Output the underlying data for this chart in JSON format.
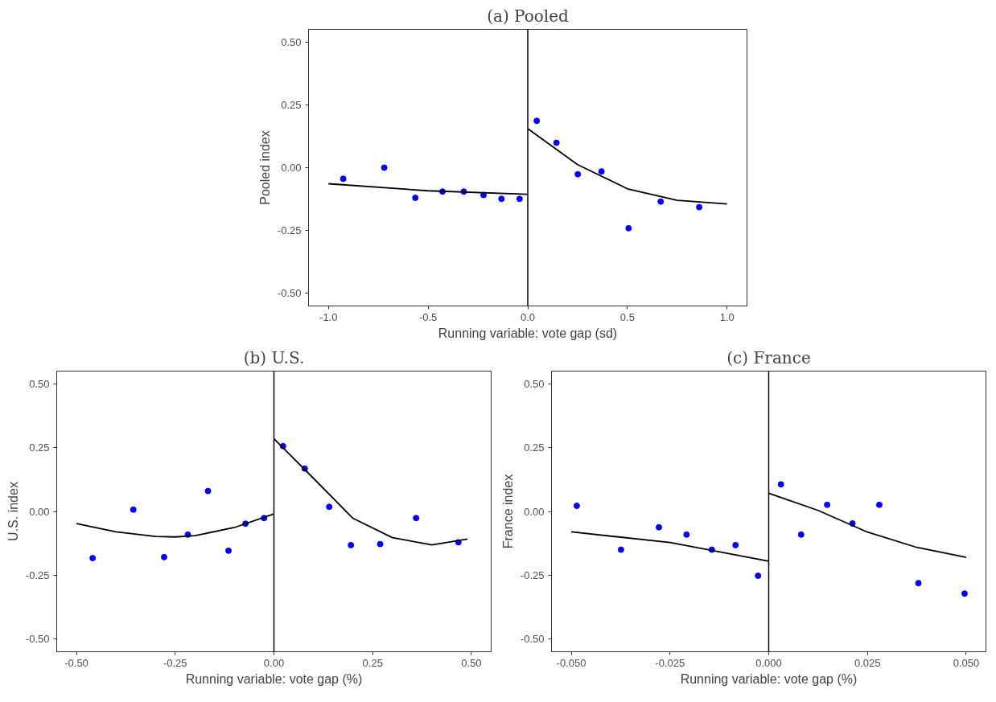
{
  "chart_data": [
    {
      "type": "scatter",
      "title": "(a) Pooled",
      "xlabel": "Running variable: vote gap (sd)",
      "ylabel": "Pooled index",
      "xlim": [
        -1.1,
        1.1
      ],
      "ylim": [
        -0.55,
        0.55
      ],
      "xticks": [
        {
          "value": -1,
          "label": "-1.0"
        },
        {
          "value": -0.5,
          "label": "-0.5"
        },
        {
          "value": 0,
          "label": "0.0"
        },
        {
          "value": 0.5,
          "label": "0.5"
        },
        {
          "value": 1,
          "label": "1.0"
        }
      ],
      "yticks": [
        {
          "value": -0.5,
          "label": "-0.50"
        },
        {
          "value": -0.25,
          "label": "-0.25"
        },
        {
          "value": 0,
          "label": "0.00"
        },
        {
          "value": 0.25,
          "label": "0.25"
        },
        {
          "value": 0.5,
          "label": "0.50"
        }
      ],
      "grid": false,
      "ref_lines": [
        {
          "axis": "x",
          "value": 0,
          "color": "#000000"
        }
      ],
      "series": [
        {
          "marker": "circle",
          "color": "#0000ff",
          "x": [
            -0.926,
            -0.72,
            -0.564,
            -0.428,
            -0.321,
            -0.222,
            -0.132,
            -0.041,
            0.045,
            0.144,
            0.251,
            0.37,
            0.506,
            0.667,
            0.86
          ],
          "values": [
            -0.044,
            0.0,
            -0.12,
            -0.095,
            -0.095,
            -0.109,
            -0.124,
            -0.124,
            0.186,
            0.099,
            -0.026,
            -0.015,
            -0.241,
            -0.135,
            -0.157
          ]
        },
        {
          "type": "line",
          "color": "#000000",
          "x": [
            -1.0,
            -0.5,
            0.0
          ],
          "values": [
            -0.064,
            -0.092,
            -0.106
          ]
        },
        {
          "type": "line",
          "color": "#000000",
          "x": [
            0.0,
            0.25,
            0.5,
            0.75,
            1.0
          ],
          "values": [
            0.155,
            0.012,
            -0.084,
            -0.13,
            -0.144
          ]
        }
      ]
    },
    {
      "type": "scatter",
      "title": "(b) U.S.",
      "xlabel": "Running variable: vote gap (%)",
      "ylabel": "U.S. index",
      "xlim": [
        -0.55,
        0.55
      ],
      "ylim": [
        -0.55,
        0.55
      ],
      "xticks": [
        {
          "value": -0.5,
          "label": "-0.50"
        },
        {
          "value": -0.25,
          "label": "-0.25"
        },
        {
          "value": 0,
          "label": "0.00"
        },
        {
          "value": 0.25,
          "label": "0.25"
        },
        {
          "value": 0.5,
          "label": "0.50"
        }
      ],
      "yticks": [
        {
          "value": -0.5,
          "label": "-0.50"
        },
        {
          "value": -0.25,
          "label": "-0.25"
        },
        {
          "value": 0,
          "label": "0.00"
        },
        {
          "value": 0.25,
          "label": "0.25"
        },
        {
          "value": 0.5,
          "label": "0.50"
        }
      ],
      "grid": false,
      "ref_lines": [
        {
          "axis": "x",
          "value": 0,
          "color": "#000000"
        }
      ],
      "series": [
        {
          "marker": "circle",
          "color": "#0000ff",
          "x": [
            -0.459,
            -0.356,
            -0.278,
            -0.218,
            -0.167,
            -0.115,
            -0.072,
            -0.025,
            0.023,
            0.078,
            0.14,
            0.195,
            0.269,
            0.36,
            0.467
          ],
          "values": [
            -0.183,
            0.007,
            -0.179,
            -0.091,
            0.08,
            -0.154,
            -0.048,
            -0.026,
            0.256,
            0.168,
            0.018,
            -0.132,
            -0.128,
            -0.026,
            -0.121
          ]
        },
        {
          "type": "line",
          "color": "#000000",
          "x": [
            -0.5,
            -0.4,
            -0.3,
            -0.25,
            -0.2,
            -0.1,
            0.0
          ],
          "values": [
            -0.048,
            -0.08,
            -0.098,
            -0.1,
            -0.095,
            -0.063,
            -0.01
          ]
        },
        {
          "type": "line",
          "color": "#000000",
          "x": [
            0.0,
            0.1,
            0.2,
            0.3,
            0.4,
            0.49
          ],
          "values": [
            0.285,
            0.13,
            -0.027,
            -0.103,
            -0.131,
            -0.108
          ]
        }
      ]
    },
    {
      "type": "scatter",
      "title": "(c) France",
      "xlabel": "Running variable: vote gap (%)",
      "ylabel": "France index",
      "xlim": [
        -0.055,
        0.055
      ],
      "ylim": [
        -0.55,
        0.55
      ],
      "xticks": [
        {
          "value": -0.05,
          "label": "-0.050"
        },
        {
          "value": -0.025,
          "label": "-0.025"
        },
        {
          "value": 0,
          "label": "0.000"
        },
        {
          "value": 0.025,
          "label": "0.025"
        },
        {
          "value": 0.05,
          "label": "0.050"
        }
      ],
      "yticks": [
        {
          "value": -0.5,
          "label": "-0.50"
        },
        {
          "value": -0.25,
          "label": "-0.25"
        },
        {
          "value": 0,
          "label": "0.00"
        },
        {
          "value": 0.25,
          "label": "0.25"
        },
        {
          "value": 0.5,
          "label": "0.50"
        }
      ],
      "grid": false,
      "ref_lines": [
        {
          "axis": "x",
          "value": 0,
          "color": "#000000"
        }
      ],
      "series": [
        {
          "marker": "circle",
          "color": "#0000ff",
          "x": [
            -0.0486,
            -0.0374,
            -0.0278,
            -0.0208,
            -0.0144,
            -0.0084,
            -0.0027,
            0.0031,
            0.0082,
            0.0148,
            0.0212,
            0.028,
            0.0379,
            0.0496
          ],
          "values": [
            0.022,
            -0.15,
            -0.062,
            -0.091,
            -0.15,
            -0.132,
            -0.252,
            0.106,
            -0.091,
            0.026,
            -0.047,
            0.026,
            -0.281,
            -0.322
          ]
        },
        {
          "type": "line",
          "color": "#000000",
          "x": [
            -0.05,
            -0.025,
            0.0
          ],
          "values": [
            -0.08,
            -0.122,
            -0.195
          ]
        },
        {
          "type": "line",
          "color": "#000000",
          "x": [
            0.0,
            0.0125,
            0.025,
            0.0375,
            0.05
          ],
          "values": [
            0.071,
            0.004,
            -0.081,
            -0.141,
            -0.18
          ]
        }
      ]
    }
  ]
}
